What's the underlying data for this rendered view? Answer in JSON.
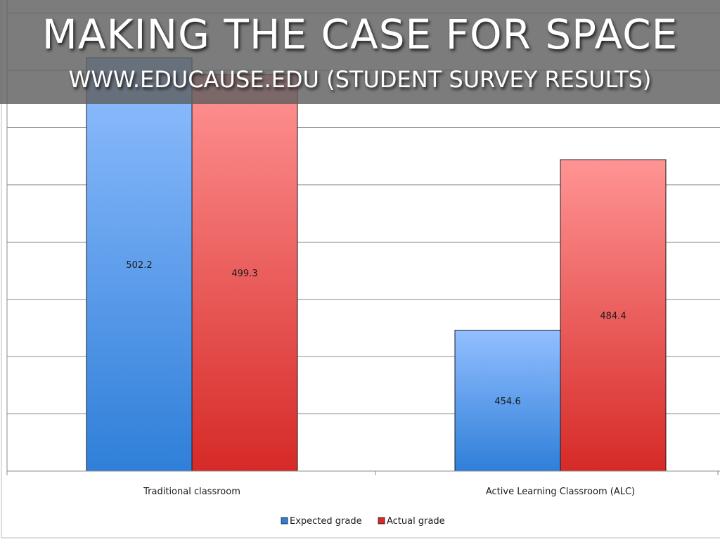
{
  "slide": {
    "title": "MAKING THE CASE FOR SPACE",
    "subtitle": "WWW.EDUCAUSE.EDU (STUDENT SURVEY RESULTS)"
  },
  "colors": {
    "expected_top": "#92bfff",
    "expected_bottom": "#2f7fd9",
    "actual_top": "#ff9494",
    "actual_bottom": "#d62a27",
    "gridline": "#8c8c8c",
    "title_band": "#5f5f5f"
  },
  "chart_data": {
    "type": "bar",
    "categories": [
      "Traditional classroom",
      "Active Learning Classroom (ALC)"
    ],
    "series": [
      {
        "name": "Expected grade",
        "values": [
          502.2,
          454.6
        ]
      },
      {
        "name": "Actual grade",
        "values": [
          499.3,
          484.4
        ]
      }
    ],
    "data_labels": [
      [
        "502.2",
        "454.6"
      ],
      [
        "499.3",
        "484.4"
      ]
    ],
    "ylim": [
      430,
      505
    ],
    "grid": true,
    "legend": "bottom-center"
  }
}
